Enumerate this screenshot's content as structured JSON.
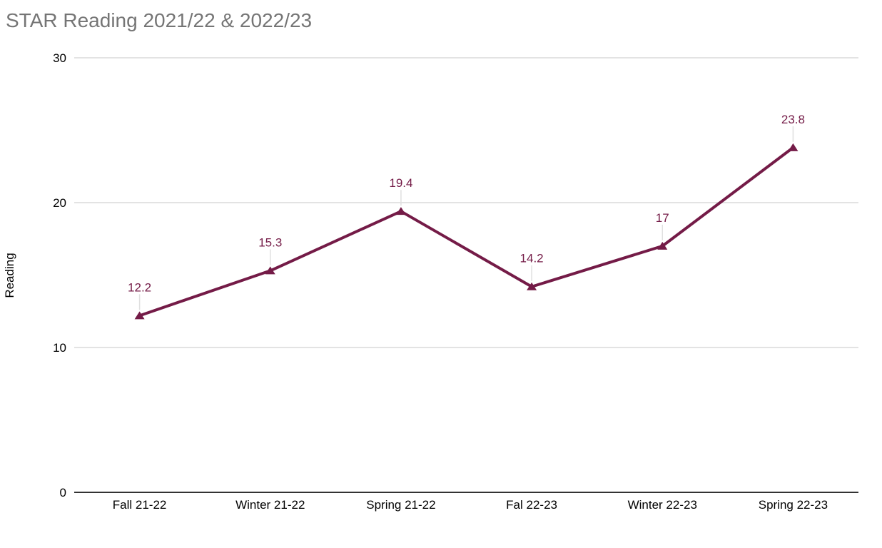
{
  "chart_data": {
    "type": "line",
    "title": "STAR Reading 2021/22 & 2022/23",
    "xlabel": "",
    "ylabel": "Reading",
    "categories": [
      "Fall 21-22",
      "Winter 21-22",
      "Spring 21-22",
      "Fal 22-23",
      "Winter 22-23",
      "Spring 22-23"
    ],
    "series": [
      {
        "name": "Reading",
        "values": [
          12.2,
          15.3,
          19.4,
          14.2,
          17,
          23.8
        ],
        "labels": [
          "12.2",
          "15.3",
          "19.4",
          "14.2",
          "17",
          "23.8"
        ],
        "color": "#741b47"
      }
    ],
    "ylim": [
      0,
      30
    ],
    "yticks": [
      0,
      10,
      20,
      30
    ],
    "grid": true,
    "legend_position": "none",
    "marker": "triangle-up",
    "colors": {
      "title": "#757575",
      "gridline": "#e3e3e3",
      "axis_line": "#333333",
      "tick_label": "#000000",
      "leader_line": "#e0e0e0",
      "background": "#ffffff"
    }
  }
}
